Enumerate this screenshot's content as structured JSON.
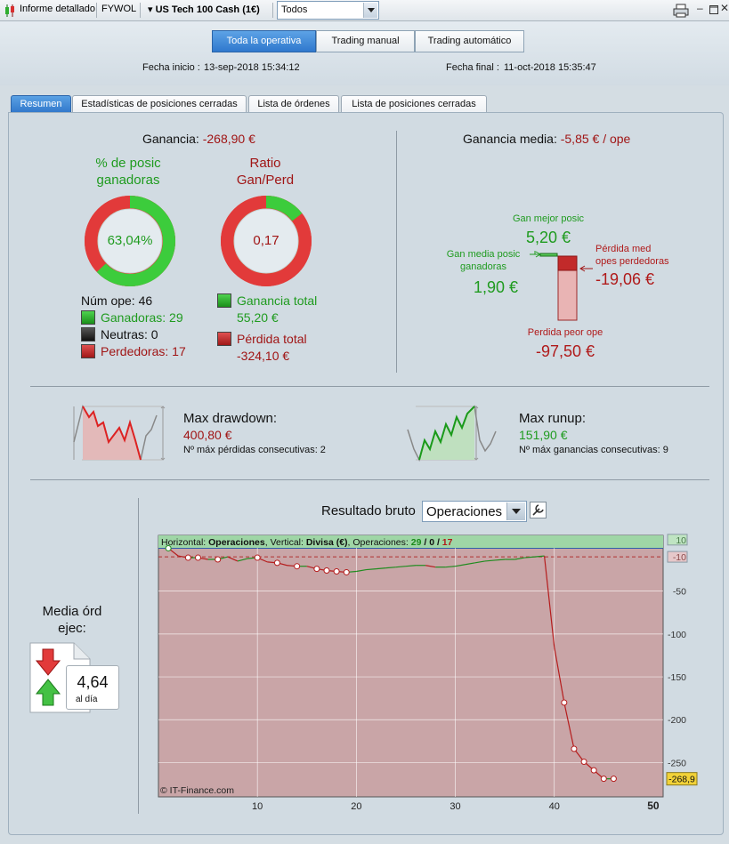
{
  "titlebar": {
    "report": "Informe detallado",
    "account": "FYWOL",
    "instrument": "US Tech 100 Cash (1€)",
    "filter": "Todos"
  },
  "mode_tabs": [
    "Toda la operativa",
    "Trading manual",
    "Trading automático"
  ],
  "dates": {
    "start_label": "Fecha inicio :",
    "start_value": "13-sep-2018 15:34:12",
    "end_label": "Fecha final :",
    "end_value": "11-oct-2018 15:35:47"
  },
  "sub_tabs": [
    "Resumen",
    "Estadísticas de posiciones cerradas",
    "Lista de órdenes",
    "Lista de posiciones cerradas"
  ],
  "summary": {
    "gain_label": "Ganancia:",
    "gain_value": "-268,90 €",
    "win_pct_title_1": "% de posic",
    "win_pct_title_2": "ganadoras",
    "win_pct_value": "63,04%",
    "win_pct_fraction": 0.6304,
    "ratio_title_1": "Ratio",
    "ratio_title_2": "Gan/Perd",
    "ratio_value": "0,17",
    "ratio_fraction": 0.1455,
    "num_ops": "Núm ope: 46",
    "winners": "Ganadoras: 29",
    "neutral": "Neutras: 0",
    "losers": "Perdedoras: 17",
    "total_gain_label": "Ganancia total",
    "total_gain_value": "55,20 €",
    "total_loss_label": "Pérdida total",
    "total_loss_value": "-324,10 €"
  },
  "average": {
    "label": "Ganancia media:",
    "value": "-5,85 € / ope",
    "best_label": "Gan mejor posic",
    "best_value": "5,20 €",
    "avg_win_label_1": "Gan media posic",
    "avg_win_label_2": "ganadoras",
    "avg_win_value": "1,90 €",
    "avg_loss_label_1": "Pérdida med",
    "avg_loss_label_2": "opes perdedoras",
    "avg_loss_value": "-19,06 €",
    "worst_label": "Perdida peor ope",
    "worst_value": "-97,50 €"
  },
  "drawdown": {
    "label": "Max drawdown:",
    "value": "400,80 €",
    "consec": "Nº máx pérdidas consecutivas: 2"
  },
  "runup": {
    "label": "Max runup:",
    "value": "151,90 €",
    "consec": "Nº máx ganancias consecutivas: 9"
  },
  "orders": {
    "title_1": "Media órd",
    "title_2": "ejec:",
    "value": "4,64",
    "unit": "al día"
  },
  "chart_header": {
    "title": "Resultado bruto",
    "select": "Operaciones"
  },
  "chart_data": {
    "type": "line",
    "title": "Resultado bruto",
    "info_prefix": "Horizontal:",
    "info_h": "Operaciones",
    "info_mid": ", Vertical:",
    "info_v": "Divisa (€)",
    "info_ops_label": ", Operaciones:",
    "ops_win": "29",
    "ops_neutral": "0",
    "ops_loss": "17",
    "xlim": [
      0,
      51
    ],
    "ylim": [
      -290,
      15
    ],
    "xticks": [
      "10",
      "20",
      "30",
      "40",
      "50"
    ],
    "yticks": [
      "10",
      "-10",
      "-50",
      "-100",
      "-150",
      "-200",
      "-250"
    ],
    "last_value_label": "-268,9",
    "watermark": "© IT-Finance.com",
    "x": [
      1,
      2,
      3,
      4,
      5,
      6,
      7,
      8,
      9,
      10,
      11,
      12,
      13,
      14,
      15,
      16,
      17,
      18,
      19,
      20,
      21,
      22,
      23,
      24,
      25,
      26,
      27,
      28,
      29,
      30,
      31,
      32,
      33,
      34,
      35,
      36,
      37,
      38,
      39,
      40,
      41,
      42,
      43,
      44,
      45,
      46
    ],
    "y": [
      0,
      -9,
      -11,
      -11,
      -13,
      -13,
      -10,
      -15,
      -12,
      -11,
      -16,
      -17,
      -20,
      -21,
      -21,
      -24,
      -26,
      -27,
      -28,
      -27,
      -25,
      -24,
      -23,
      -22,
      -21,
      -20,
      -20,
      -22,
      -22,
      -21,
      -19,
      -17,
      -15,
      -14,
      -13,
      -13,
      -11,
      -10,
      -9,
      -115,
      -180,
      -234,
      -249,
      -259,
      -268.9,
      -268.9
    ],
    "marked_x": [
      1,
      3,
      4,
      6,
      10,
      12,
      14,
      16,
      17,
      18,
      19,
      41,
      42,
      43,
      44,
      45,
      46
    ],
    "grid": true
  }
}
